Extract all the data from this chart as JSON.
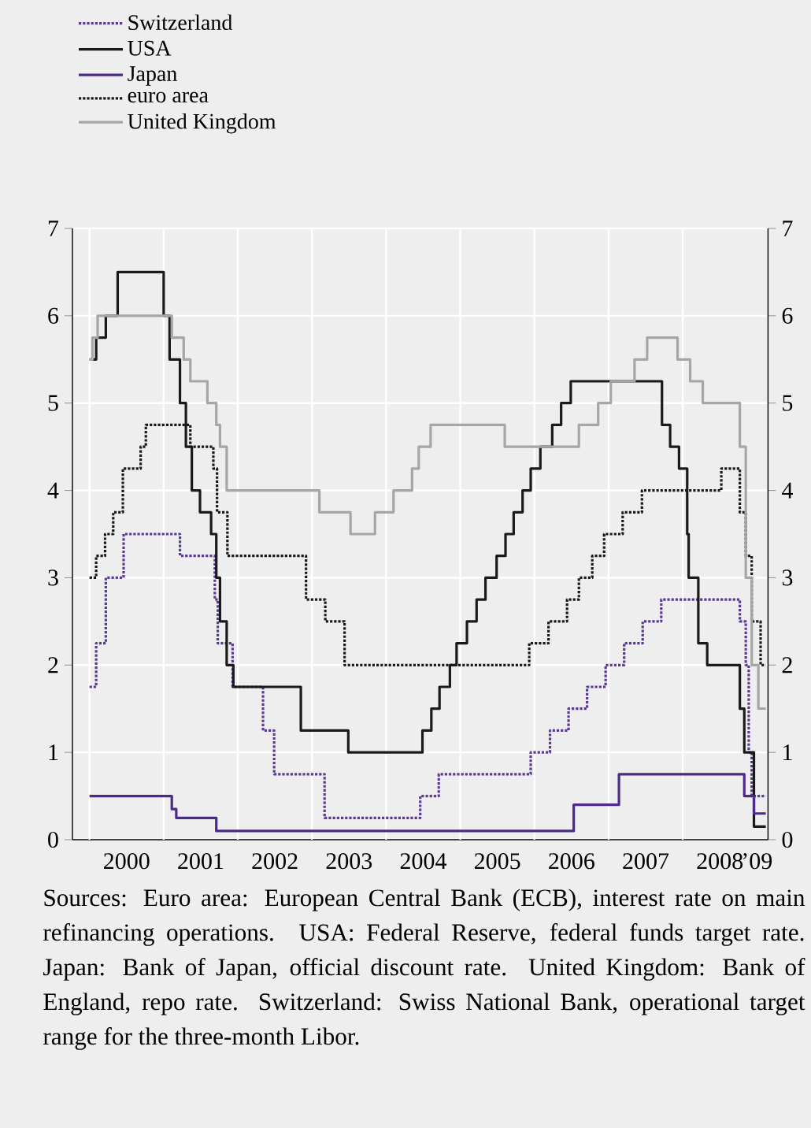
{
  "chart_data": {
    "type": "step",
    "xlim": [
      1999.77,
      2009.15
    ],
    "ylim": [
      0,
      7
    ],
    "y2lim": [
      0,
      7
    ],
    "xticks": [
      {
        "value": 2000,
        "label": null
      },
      {
        "value": 2001,
        "label": null
      },
      {
        "value": 2002,
        "label": null
      },
      {
        "value": 2003,
        "label": null
      },
      {
        "value": 2004,
        "label": null
      },
      {
        "value": 2005,
        "label": null
      },
      {
        "value": 2006,
        "label": null
      },
      {
        "value": 2007,
        "label": null
      },
      {
        "value": 2008,
        "label": null
      },
      {
        "value": 2009,
        "label": "’09"
      },
      {
        "value": 2000.5,
        "label": "2000"
      },
      {
        "value": 2001.5,
        "label": "2001"
      },
      {
        "value": 2002.5,
        "label": "2002"
      },
      {
        "value": 2003.5,
        "label": "2003"
      },
      {
        "value": 2004.5,
        "label": "2004"
      },
      {
        "value": 2005.5,
        "label": "2005"
      },
      {
        "value": 2006.5,
        "label": "2006"
      },
      {
        "value": 2007.5,
        "label": "2007"
      },
      {
        "value": 2008.5,
        "label": "2008"
      }
    ],
    "yticks": [
      0,
      1,
      2,
      3,
      4,
      5,
      6,
      7
    ],
    "y2ticks": [
      0,
      1,
      2,
      3,
      4,
      5,
      6,
      7
    ],
    "grid": true,
    "legend": "top left",
    "series": [
      {
        "name": "Switzerland",
        "color": "#5b3a96",
        "line_style": "dotted",
        "x": [
          2000.0,
          2000.09,
          2000.22,
          2000.46,
          2001.22,
          2001.69,
          2001.73,
          2001.93,
          2002.34,
          2002.49,
          2003.17,
          2004.46,
          2004.71,
          2005.95,
          2006.21,
          2006.46,
          2006.71,
          2006.96,
          2007.21,
          2007.46,
          2007.71,
          2008.77,
          2008.85,
          2008.89,
          2008.93,
          2009.12
        ],
        "values": [
          1.75,
          2.25,
          3.0,
          3.5,
          3.25,
          2.75,
          2.25,
          1.75,
          1.25,
          0.75,
          0.25,
          0.5,
          0.75,
          1.0,
          1.25,
          1.5,
          1.75,
          2.0,
          2.25,
          2.5,
          2.75,
          2.5,
          2.0,
          1.0,
          0.5,
          0.5
        ]
      },
      {
        "name": "USA",
        "color": "#1a1a1a",
        "line_style": "solid",
        "x": [
          2000.0,
          2000.09,
          2000.22,
          2000.38,
          2001.0,
          2001.08,
          2001.22,
          2001.3,
          2001.38,
          2001.49,
          2001.64,
          2001.71,
          2001.76,
          2001.85,
          2001.94,
          2002.85,
          2003.49,
          2004.49,
          2004.61,
          2004.72,
          2004.86,
          2004.95,
          2005.09,
          2005.22,
          2005.34,
          2005.49,
          2005.61,
          2005.72,
          2005.84,
          2005.95,
          2006.08,
          2006.24,
          2006.36,
          2006.49,
          2007.72,
          2007.83,
          2007.95,
          2008.06,
          2008.08,
          2008.21,
          2008.33,
          2008.77,
          2008.83,
          2008.96,
          2009.12
        ],
        "values": [
          5.5,
          5.75,
          6.0,
          6.5,
          6.0,
          5.5,
          5.0,
          4.5,
          4.0,
          3.75,
          3.5,
          3.0,
          2.5,
          2.0,
          1.75,
          1.25,
          1.0,
          1.25,
          1.5,
          1.75,
          2.0,
          2.25,
          2.5,
          2.75,
          3.0,
          3.25,
          3.5,
          3.75,
          4.0,
          4.25,
          4.5,
          4.75,
          5.0,
          5.25,
          4.75,
          4.5,
          4.25,
          3.5,
          3.0,
          2.25,
          2.0,
          1.5,
          1.0,
          0.15,
          0.15
        ]
      },
      {
        "name": "Japan",
        "color": "#4b2a8a",
        "line_style": "solid",
        "x": [
          2000.0,
          2001.11,
          2001.17,
          2001.71,
          2006.53,
          2007.14,
          2008.83,
          2008.96,
          2009.12
        ],
        "values": [
          0.5,
          0.35,
          0.25,
          0.1,
          0.4,
          0.75,
          0.5,
          0.3,
          0.3
        ]
      },
      {
        "name": "euro area",
        "color": "#1a1a1a",
        "line_style": "dotted",
        "x": [
          2000.0,
          2000.09,
          2000.21,
          2000.32,
          2000.45,
          2000.69,
          2000.76,
          2001.36,
          2001.67,
          2001.72,
          2001.86,
          2002.92,
          2003.18,
          2003.44,
          2005.93,
          2006.19,
          2006.44,
          2006.6,
          2006.78,
          2006.94,
          2007.19,
          2007.45,
          2008.52,
          2008.77,
          2008.85,
          2008.93,
          2009.05,
          2009.12
        ],
        "values": [
          3.0,
          3.25,
          3.5,
          3.75,
          4.25,
          4.5,
          4.75,
          4.5,
          4.25,
          3.75,
          3.25,
          2.75,
          2.5,
          2.0,
          2.25,
          2.5,
          2.75,
          3.0,
          3.25,
          3.5,
          3.75,
          4.0,
          4.25,
          3.75,
          3.25,
          2.5,
          2.0,
          2.0
        ]
      },
      {
        "name": "United Kingdom",
        "color": "#a6a6a6",
        "line_style": "solid",
        "x": [
          2000.0,
          2000.04,
          2000.11,
          2001.11,
          2001.27,
          2001.36,
          2001.59,
          2001.71,
          2001.76,
          2001.85,
          2003.1,
          2003.52,
          2003.85,
          2004.1,
          2004.35,
          2004.44,
          2004.6,
          2005.6,
          2006.6,
          2006.86,
          2007.03,
          2007.35,
          2007.52,
          2007.93,
          2008.1,
          2008.27,
          2008.77,
          2008.85,
          2008.93,
          2009.02,
          2009.12
        ],
        "values": [
          5.5,
          5.75,
          6.0,
          5.75,
          5.5,
          5.25,
          5.0,
          4.75,
          4.5,
          4.0,
          3.75,
          3.5,
          3.75,
          4.0,
          4.25,
          4.5,
          4.75,
          4.5,
          4.75,
          5.0,
          5.25,
          5.5,
          5.75,
          5.5,
          5.25,
          5.0,
          4.5,
          3.0,
          2.0,
          1.5,
          1.5
        ]
      }
    ],
    "annotations": [
      "Sources: Euro area: European Central Bank (ECB), interest rate on main refinancing operations. USA: Federal Reserve, federal funds target rate. Japan: Bank of Japan, official discount rate. United Kingdom: Bank of England, repo rate. Switzerland: Swiss National Bank, operational target range for the three-month Libor."
    ]
  }
}
